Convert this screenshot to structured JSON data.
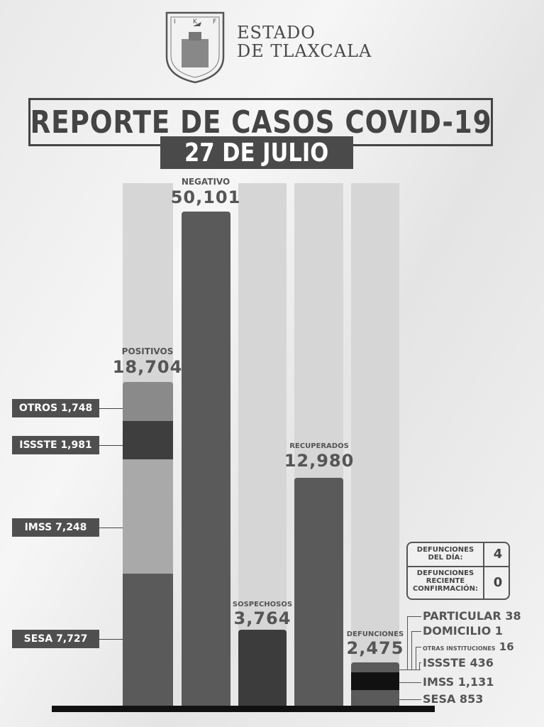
{
  "header": {
    "org_line1": "ESTADO",
    "org_line2": "DE TLAXCALA",
    "title": "REPORTE DE CASOS COVID-19",
    "date": "27 DE JULIO"
  },
  "chart_data": {
    "type": "bar",
    "stacked": true,
    "categories": [
      "POSITIVOS",
      "NEGATIVO",
      "SOSPECHOSOS",
      "RECUPERADOS",
      "DEFUNCIONES"
    ],
    "values": [
      18704,
      50101,
      3764,
      12980,
      2475
    ],
    "value_labels": [
      "18,704",
      "50,101",
      "3,764",
      "12,980",
      "2,475"
    ],
    "positivos_breakdown": [
      {
        "name": "OTROS",
        "value": 1748,
        "label": "OTROS 1,748",
        "color": "#8a8a8a"
      },
      {
        "name": "ISSSTE",
        "value": 1981,
        "label": "ISSSTE 1,981",
        "color": "#3e3e3e"
      },
      {
        "name": "IMSS",
        "value": 7248,
        "label": "IMSS 7,248",
        "color": "#a9a9a9"
      },
      {
        "name": "SESA",
        "value": 7727,
        "label": "SESA 7,727",
        "color": "#5a5a5a"
      }
    ],
    "defunciones_breakdown": [
      {
        "name": "PARTICULAR",
        "value": 38,
        "label": "PARTICULAR 38"
      },
      {
        "name": "DOMICILIO",
        "value": 1,
        "label": "DOMICILIO 1"
      },
      {
        "name": "OTRAS INSTITUCIONES",
        "value": 16,
        "label_name": "OTRAS INSTITUCIONES",
        "label_value": "16"
      },
      {
        "name": "ISSSTE",
        "value": 436,
        "label": "ISSSTE 436"
      },
      {
        "name": "IMSS",
        "value": 1131,
        "label": "IMSS 1,131"
      },
      {
        "name": "SESA",
        "value": 853,
        "label": "SESA 853"
      }
    ],
    "grid": false,
    "legend": "none"
  },
  "deaths_table": {
    "row1_label": "DEFUNCIONES DEL DÍA:",
    "row1_value": "4",
    "row2_label": "DEFUNCIONES RECIENTE CONFIRMACIÓN:",
    "row2_value": "0"
  }
}
